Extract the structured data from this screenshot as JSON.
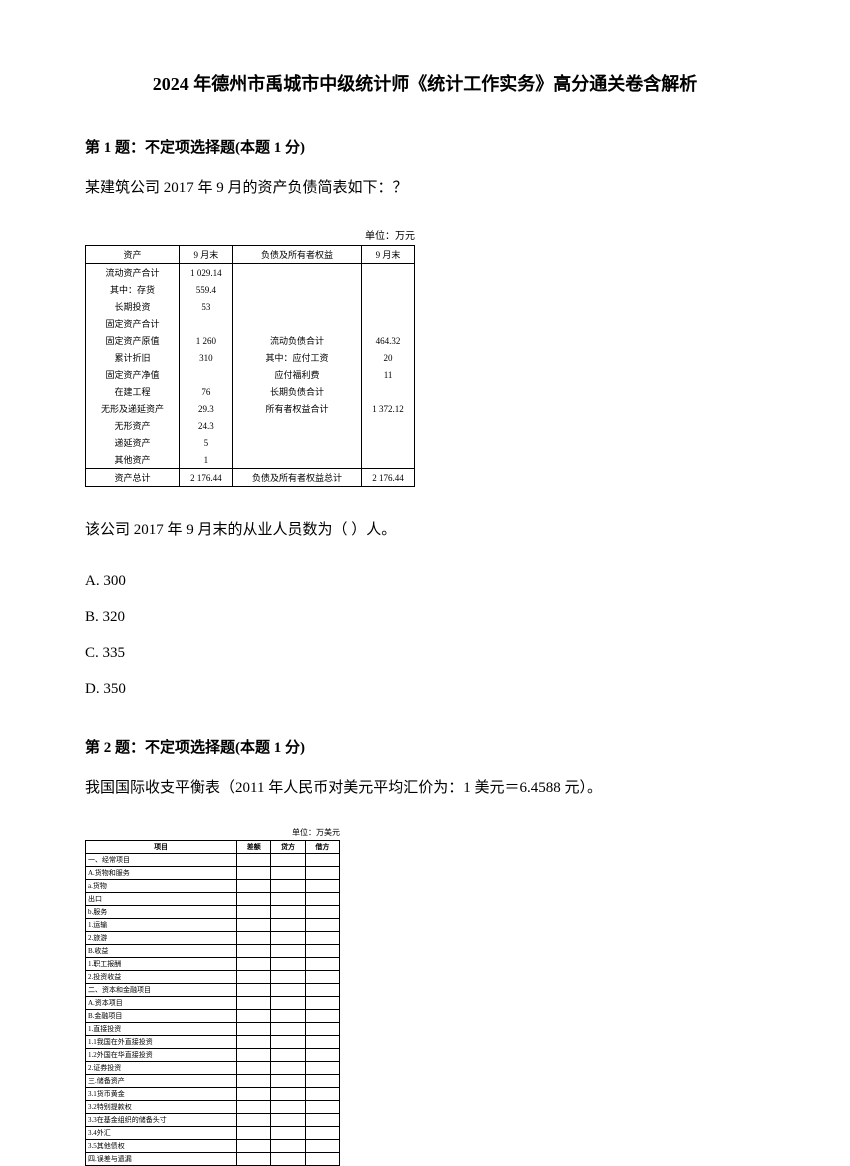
{
  "title": "2024 年德州市禹城市中级统计师《统计工作实务》高分通关卷含解析",
  "q1": {
    "header": "第 1 题：不定项选择题(本题 1 分)",
    "text": "某建筑公司 2017 年 9 月的资产负债简表如下：？",
    "table_unit": "单位：万元",
    "headers": [
      "资产",
      "9 月末",
      "负债及所有者权益",
      "9 月末"
    ],
    "left_rows": [
      [
        "流动资产合计",
        "1 029.14"
      ],
      [
        "其中：存货",
        "559.4"
      ],
      [
        "长期投资",
        "53"
      ],
      [
        "固定资产合计",
        ""
      ],
      [
        "固定资产原值",
        "1 260"
      ],
      [
        "累计折旧",
        "310"
      ],
      [
        "固定资产净值",
        ""
      ],
      [
        "在建工程",
        "76"
      ],
      [
        "无形及递延资产",
        "29.3"
      ],
      [
        "无形资产",
        "24.3"
      ],
      [
        "递延资产",
        "5"
      ],
      [
        "其他资产",
        "1"
      ]
    ],
    "right_rows": [
      [
        "流动负债合计",
        "464.32"
      ],
      [
        "其中：应付工资",
        "20"
      ],
      [
        "应付福利费",
        "11"
      ],
      [
        "长期负债合计",
        ""
      ],
      [
        "所有者权益合计",
        "1 372.12"
      ]
    ],
    "footer": [
      "资产总计",
      "2 176.44",
      "负债及所有者权益总计",
      "2 176.44"
    ],
    "sub_question": "该公司 2017 年 9 月末的从业人员数为（ ）人。",
    "options": [
      "A. 300",
      "B. 320",
      "C. 335",
      "D. 350"
    ]
  },
  "q2": {
    "header": "第 2 题：不定项选择题(本题 1 分)",
    "text": "我国国际收支平衡表（2011 年人民币对美元平均汇价为：1 美元＝6.4588 元）。",
    "table_unit": "单位：万美元",
    "headers": [
      "项目",
      "差额",
      "贷方",
      "借方"
    ],
    "rows": [
      [
        "一、经常项目",
        "",
        "",
        ""
      ],
      [
        "A.货物和服务",
        "",
        "",
        ""
      ],
      [
        "a.货物",
        "",
        "",
        ""
      ],
      [
        "出口",
        "",
        "",
        ""
      ],
      [
        "b.服务",
        "",
        "",
        ""
      ],
      [
        "1.运输",
        "",
        "",
        ""
      ],
      [
        "2.旅游",
        "",
        "",
        ""
      ],
      [
        "B.收益",
        "",
        "",
        ""
      ],
      [
        "1.职工报酬",
        "",
        "",
        ""
      ],
      [
        "2.投资收益",
        "",
        "",
        ""
      ],
      [
        "二、资本和金融项目",
        "",
        "",
        ""
      ],
      [
        "A.资本项目",
        "",
        "",
        ""
      ],
      [
        "B.金融项目",
        "",
        "",
        ""
      ],
      [
        "1.直接投资",
        "",
        "",
        ""
      ],
      [
        "1.1我国在外直接投资",
        "",
        "",
        ""
      ],
      [
        "1.2外国在华直接投资",
        "",
        "",
        ""
      ],
      [
        "2.证券投资",
        "",
        "",
        ""
      ],
      [
        "三.储备资产",
        "",
        "",
        ""
      ],
      [
        "3.1货币黄金",
        "",
        "",
        ""
      ],
      [
        "3.2特别提款权",
        "",
        "",
        ""
      ],
      [
        "3.3在基金组织的储备头寸",
        "",
        "",
        ""
      ],
      [
        "3.4外汇",
        "",
        "",
        ""
      ],
      [
        "3.5其他债权",
        "",
        "",
        ""
      ],
      [
        "四.误差与遗漏",
        "",
        "",
        ""
      ]
    ]
  }
}
